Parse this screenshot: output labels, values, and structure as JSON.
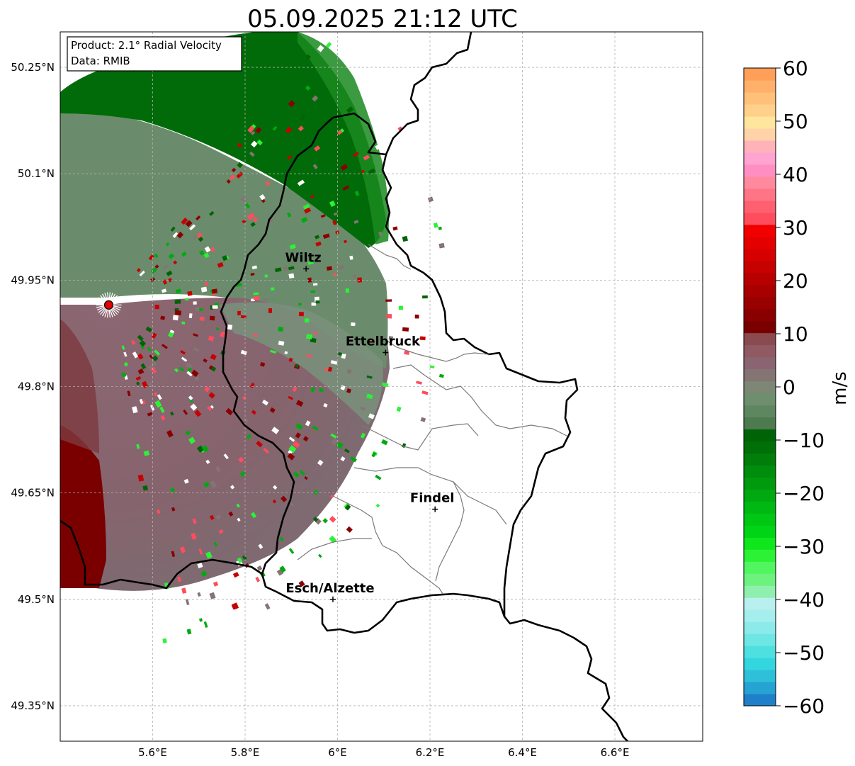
{
  "title": "05.09.2025 21:12 UTC",
  "info_box": {
    "product": "Product: 2.1° Radial Velocity",
    "data_source": "Data: RMIB"
  },
  "axes": {
    "lon_ticks": [
      "5.6°E",
      "5.8°E",
      "6°E",
      "6.2°E",
      "6.4°E",
      "6.6°E"
    ],
    "lat_ticks": [
      "50.25°N",
      "50.1°N",
      "49.95°N",
      "49.8°N",
      "49.65°N",
      "49.5°N",
      "49.35°N"
    ],
    "lon_tick_values": [
      5.6,
      5.8,
      6.0,
      6.2,
      6.4,
      6.6
    ],
    "lat_tick_values": [
      50.25,
      50.1,
      49.95,
      49.8,
      49.65,
      49.5,
      49.35
    ],
    "lon_range": [
      5.4,
      6.79
    ],
    "lat_range": [
      49.3,
      50.3
    ],
    "grid": "dashed"
  },
  "radar": {
    "lon": 5.505,
    "lat": 49.915,
    "marker_color": "#e00000"
  },
  "cities": [
    {
      "name": "Wiltz",
      "lon": 5.932,
      "lat": 49.966
    },
    {
      "name": "Ettelbruck",
      "lon": 6.104,
      "lat": 49.848
    },
    {
      "name": "Findel",
      "lon": 6.211,
      "lat": 49.627
    },
    {
      "name": "Esch/Alzette",
      "lon": 5.99,
      "lat": 49.5
    }
  ],
  "colorbar": {
    "label": "m/s",
    "min": -60,
    "max": 60,
    "ticks": [
      "60",
      "50",
      "40",
      "30",
      "20",
      "10",
      "0",
      "−10",
      "−20",
      "−30",
      "−40",
      "−50",
      "−60"
    ],
    "tick_values": [
      60,
      50,
      40,
      30,
      20,
      10,
      0,
      -10,
      -20,
      -30,
      -40,
      -50,
      -60
    ],
    "colors_bottom_to_top": [
      "#1f7fc8",
      "#25a3d2",
      "#2ec0d9",
      "#33d6de",
      "#4ee0e0",
      "#6ee6e4",
      "#8deaea",
      "#a6eded",
      "#b9efef",
      "#8fefae",
      "#6ef27e",
      "#50f560",
      "#2cf235",
      "#0fe61c",
      "#00d417",
      "#00c614",
      "#00b812",
      "#00a910",
      "#009a0e",
      "#008c0c",
      "#007d0a",
      "#006f08",
      "#006406",
      "#4e7a4f",
      "#5e8760",
      "#6d8f6e",
      "#7e8676",
      "#857474",
      "#8a6470",
      "#905a63",
      "#8a4b50",
      "#7a0000",
      "#8a0000",
      "#990000",
      "#a80000",
      "#b80000",
      "#c70000",
      "#d60000",
      "#e50000",
      "#f20000",
      "#ff4d5e",
      "#ff6070",
      "#ff7585",
      "#ff8aa0",
      "#ff8fc2",
      "#ffa3d0",
      "#ffb3b8",
      "#ffd3a8",
      "#ffe59e",
      "#ffd08a",
      "#ffc07a",
      "#ffb06a",
      "#ff9f58"
    ]
  }
}
